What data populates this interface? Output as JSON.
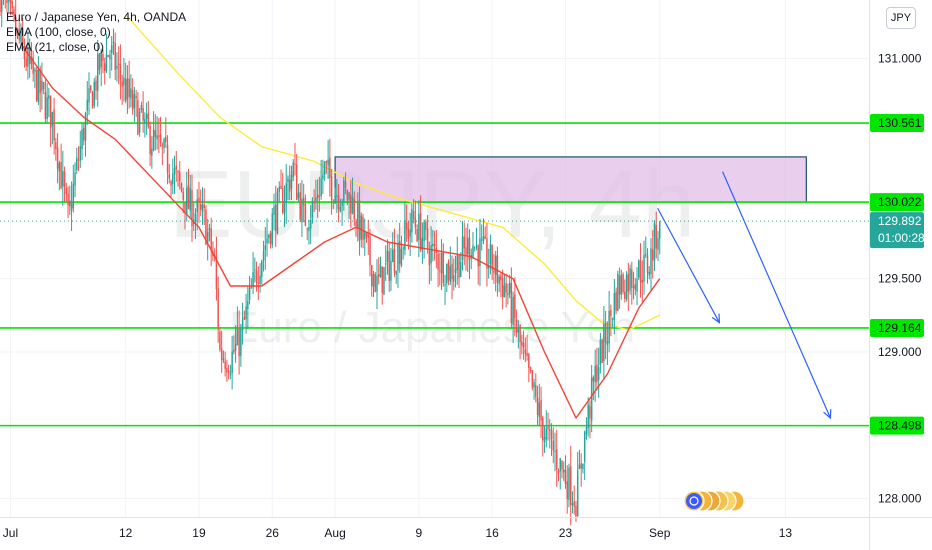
{
  "legend": {
    "title": "Euro / Japanese Yen, 4h, OANDA",
    "ema100": "EMA (100, close, 0)",
    "ema21": "EMA (21, close, 0)"
  },
  "currency_button": "JPY",
  "watermark": {
    "symbol": "EURJPY, 4h",
    "name": "Euro / Japanese Yen"
  },
  "colors": {
    "level_line": "#00e600",
    "level_label_bg": "#00e600",
    "zone_fill": "#e1bee7",
    "zone_border": "#1e4f6b",
    "candle_up": "#26a69a",
    "candle_down": "#ef5350",
    "ema21": "#f44336",
    "ema100": "#ffeb3b",
    "arrow": "#2962ff",
    "price_label_bg": "#26a69a"
  },
  "chart_data": {
    "type": "candlestick",
    "symbol": "EURJPY",
    "timeframe": "4h",
    "broker": "OANDA",
    "ylim": [
      127.65,
      131.4
    ],
    "y_ticks": [
      "131.000",
      "129.500",
      "129.000",
      "128.000"
    ],
    "x_ticks": [
      "Jul",
      "12",
      "19",
      "26",
      "Aug",
      "9",
      "16",
      "23",
      "Sep",
      "13"
    ],
    "x_tick_days": [
      1,
      12,
      19,
      26,
      32,
      40,
      47,
      54,
      63,
      75
    ],
    "x_range_days": [
      0,
      89
    ],
    "horizontal_levels": [
      {
        "label": "130.561",
        "value": 130.561
      },
      {
        "label": "130.022",
        "value": 130.022
      },
      {
        "label": "129.164",
        "value": 129.164
      },
      {
        "label": "128.498",
        "value": 128.498
      }
    ],
    "current_price": {
      "label": "129.892",
      "value": 129.892,
      "countdown": "01:00:28"
    },
    "supply_zone": {
      "day_start": 32,
      "day_end": 77,
      "low": 130.022,
      "high": 130.33
    },
    "close_path": [
      [
        0,
        131.45
      ],
      [
        3,
        130.9
      ],
      [
        5,
        130.6
      ],
      [
        6.5,
        129.9
      ],
      [
        7.2,
        130.2
      ],
      [
        8.2,
        130.6
      ],
      [
        9.5,
        130.95
      ],
      [
        10.5,
        131.05
      ],
      [
        12.5,
        130.7
      ],
      [
        14,
        130.5
      ],
      [
        16,
        130.3
      ],
      [
        18,
        130.0
      ],
      [
        19.5,
        129.9
      ],
      [
        20.5,
        129.6
      ],
      [
        21,
        129.0
      ],
      [
        22,
        128.95
      ],
      [
        23,
        129.1
      ],
      [
        24.5,
        129.55
      ],
      [
        26,
        129.9
      ],
      [
        27,
        130.05
      ],
      [
        28,
        130.25
      ],
      [
        29,
        129.9
      ],
      [
        30,
        130.0
      ],
      [
        31,
        130.25
      ],
      [
        32,
        130.1
      ],
      [
        33.5,
        130.05
      ],
      [
        35,
        129.7
      ],
      [
        36,
        129.45
      ],
      [
        38,
        129.7
      ],
      [
        39.5,
        129.9
      ],
      [
        41,
        129.7
      ],
      [
        43,
        129.55
      ],
      [
        45,
        129.75
      ],
      [
        47,
        129.6
      ],
      [
        48.5,
        129.4
      ],
      [
        50,
        128.95
      ],
      [
        51,
        128.7
      ],
      [
        52,
        128.45
      ],
      [
        53,
        128.3
      ],
      [
        54,
        128.15
      ],
      [
        55,
        128.0
      ],
      [
        56,
        128.5
      ],
      [
        57,
        128.9
      ],
      [
        58,
        129.15
      ],
      [
        59,
        129.45
      ],
      [
        60,
        129.5
      ],
      [
        61,
        129.55
      ],
      [
        62,
        129.6
      ],
      [
        63,
        129.9
      ]
    ],
    "ema21_path": [
      [
        2,
        131.1
      ],
      [
        5,
        130.8
      ],
      [
        8,
        130.6
      ],
      [
        11,
        130.45
      ],
      [
        15,
        130.15
      ],
      [
        19,
        129.85
      ],
      [
        22,
        129.45
      ],
      [
        25,
        129.45
      ],
      [
        28,
        129.6
      ],
      [
        31,
        129.75
      ],
      [
        34,
        129.85
      ],
      [
        37,
        129.75
      ],
      [
        41,
        129.7
      ],
      [
        45,
        129.65
      ],
      [
        49,
        129.5
      ],
      [
        52,
        129.0
      ],
      [
        55,
        128.55
      ],
      [
        58,
        128.85
      ],
      [
        61,
        129.3
      ],
      [
        63,
        129.5
      ]
    ],
    "ema100_path": [
      [
        12,
        131.3
      ],
      [
        17,
        130.9
      ],
      [
        21,
        130.6
      ],
      [
        25,
        130.4
      ],
      [
        30,
        130.3
      ],
      [
        34,
        130.15
      ],
      [
        38,
        130.05
      ],
      [
        43,
        129.95
      ],
      [
        48,
        129.85
      ],
      [
        52,
        129.6
      ],
      [
        55,
        129.35
      ],
      [
        57.5,
        129.2
      ],
      [
        60,
        129.15
      ],
      [
        63,
        129.25
      ]
    ],
    "projection_arrows": [
      {
        "from": [
          62.8,
          129.98
        ],
        "to": [
          68.7,
          129.2
        ]
      },
      {
        "from": [
          69.0,
          130.23
        ],
        "to": [
          79.3,
          128.55
        ]
      }
    ]
  }
}
